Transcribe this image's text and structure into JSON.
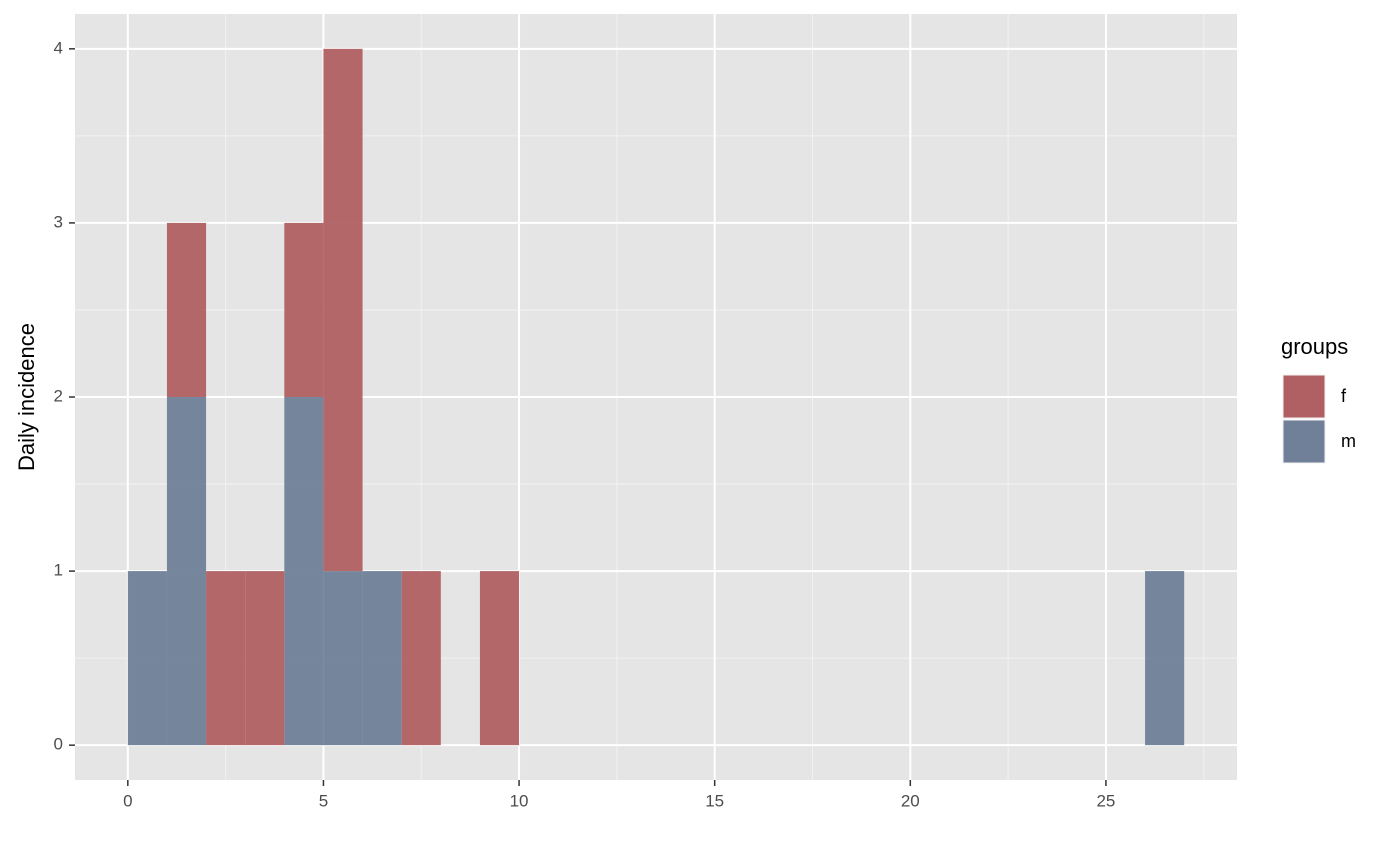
{
  "chart_data": {
    "type": "histogram",
    "ylabel": "Daily incidence",
    "legend_title": "groups",
    "legend": "right",
    "stacked": true,
    "grid": true,
    "bins": [
      0,
      1,
      2,
      3,
      4,
      5,
      6,
      7,
      8,
      9,
      10,
      11,
      12,
      13,
      14,
      15,
      16,
      17,
      18,
      19,
      20,
      21,
      22,
      23,
      24,
      25,
      26,
      27
    ],
    "series": [
      {
        "name": "f",
        "color": "#b06062",
        "values": [
          0,
          1,
          1,
          1,
          1,
          3,
          0,
          1,
          0,
          1,
          0,
          0,
          0,
          0,
          0,
          0,
          0,
          0,
          0,
          0,
          0,
          0,
          0,
          0,
          0,
          0,
          0
        ]
      },
      {
        "name": "m",
        "color": "#6f8098",
        "values": [
          1,
          2,
          0,
          0,
          2,
          1,
          1,
          0,
          0,
          0,
          0,
          0,
          0,
          0,
          0,
          0,
          0,
          0,
          0,
          0,
          0,
          0,
          0,
          0,
          0,
          0,
          1
        ]
      }
    ],
    "xlim": [
      -1.35,
      28.35
    ],
    "xticks": [
      0,
      5,
      10,
      15,
      20,
      25
    ],
    "ylim": [
      -0.2,
      4.2
    ],
    "yticks": [
      0,
      1,
      2,
      3,
      4
    ]
  }
}
